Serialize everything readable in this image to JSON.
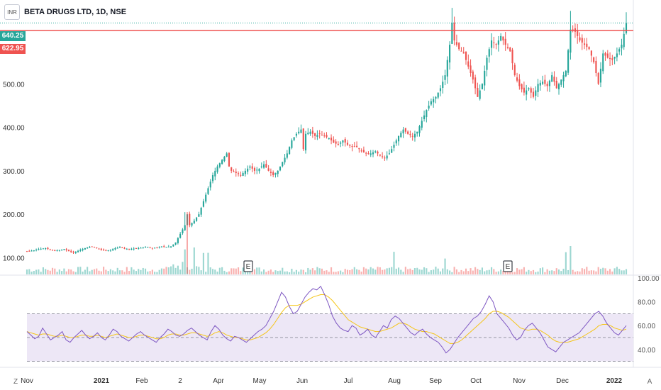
{
  "legend": {
    "symbol_badge": "INR",
    "title": "BETA DRUGS LTD, 1D, NSE"
  },
  "price_tags": [
    {
      "value": "640.25",
      "color": "#26a69a"
    },
    {
      "value": "622.95",
      "color": "#ef5350"
    }
  ],
  "colors": {
    "up": "#26a69a",
    "down": "#ef5350",
    "rsi_line": "#7e57c2",
    "rsi_ma": "#f5c518",
    "rsi_band": "#ede7f6",
    "level_line": "#ef5350",
    "last_price_line": "#26a69a"
  },
  "earnings_marker": "E",
  "bottom_buttons": {
    "left": "Z",
    "right": "A"
  },
  "chart_data": [
    {
      "type": "candlestick",
      "title": "BETA DRUGS LTD, 1D, NSE",
      "y_ticks": [
        "100.00",
        "200.00",
        "300.00",
        "400.00",
        "500.00"
      ],
      "ylim": [
        60,
        680
      ],
      "x_ticks": [
        "Nov",
        "2021",
        "Feb",
        "2",
        "Apr",
        "May",
        "Jun",
        "Jul",
        "Aug",
        "Sep",
        "Oct",
        "Nov",
        "Dec",
        "2022"
      ],
      "last_price": 640.25,
      "horizontal_level": 622.95,
      "close_path": [
        [
          0,
          115
        ],
        [
          3,
          117
        ],
        [
          5,
          120
        ],
        [
          8,
          122
        ],
        [
          10,
          118
        ],
        [
          12,
          116
        ],
        [
          14,
          118
        ],
        [
          16,
          120
        ],
        [
          18,
          115
        ],
        [
          20,
          112
        ],
        [
          22,
          116
        ],
        [
          24,
          120
        ],
        [
          26,
          124
        ],
        [
          28,
          126
        ],
        [
          30,
          122
        ],
        [
          32,
          118
        ],
        [
          34,
          116
        ],
        [
          36,
          118
        ],
        [
          38,
          122
        ],
        [
          40,
          124
        ],
        [
          42,
          121
        ],
        [
          44,
          120
        ],
        [
          46,
          121
        ],
        [
          48,
          122
        ],
        [
          50,
          124
        ],
        [
          52,
          125
        ],
        [
          54,
          122
        ],
        [
          56,
          124
        ],
        [
          58,
          126
        ],
        [
          60,
          125
        ],
        [
          62,
          126
        ],
        [
          64,
          135
        ],
        [
          66,
          155
        ],
        [
          68,
          175
        ],
        [
          69,
          200
        ],
        [
          70,
          175
        ],
        [
          72,
          185
        ],
        [
          74,
          200
        ],
        [
          76,
          230
        ],
        [
          78,
          260
        ],
        [
          80,
          290
        ],
        [
          82,
          310
        ],
        [
          84,
          325
        ],
        [
          86,
          340
        ],
        [
          87,
          310
        ],
        [
          88,
          300
        ],
        [
          90,
          295
        ],
        [
          92,
          290
        ],
        [
          94,
          300
        ],
        [
          96,
          310
        ],
        [
          98,
          300
        ],
        [
          100,
          305
        ],
        [
          102,
          315
        ],
        [
          104,
          300
        ],
        [
          106,
          290
        ],
        [
          108,
          300
        ],
        [
          110,
          320
        ],
        [
          112,
          340
        ],
        [
          114,
          370
        ],
        [
          116,
          385
        ],
        [
          118,
          395
        ],
        [
          119,
          350
        ],
        [
          120,
          385
        ],
        [
          122,
          390
        ],
        [
          124,
          380
        ],
        [
          126,
          385
        ],
        [
          128,
          380
        ],
        [
          130,
          375
        ],
        [
          132,
          365
        ],
        [
          134,
          360
        ],
        [
          136,
          370
        ],
        [
          138,
          360
        ],
        [
          140,
          355
        ],
        [
          142,
          355
        ],
        [
          144,
          345
        ],
        [
          146,
          340
        ],
        [
          148,
          340
        ],
        [
          150,
          345
        ],
        [
          152,
          335
        ],
        [
          154,
          330
        ],
        [
          156,
          340
        ],
        [
          158,
          360
        ],
        [
          160,
          380
        ],
        [
          162,
          395
        ],
        [
          164,
          385
        ],
        [
          166,
          380
        ],
        [
          168,
          390
        ],
        [
          170,
          415
        ],
        [
          172,
          440
        ],
        [
          174,
          460
        ],
        [
          176,
          470
        ],
        [
          178,
          490
        ],
        [
          180,
          520
        ],
        [
          182,
          590
        ],
        [
          183,
          640
        ],
        [
          184,
          600
        ],
        [
          186,
          580
        ],
        [
          188,
          570
        ],
        [
          190,
          540
        ],
        [
          192,
          510
        ],
        [
          194,
          470
        ],
        [
          196,
          500
        ],
        [
          198,
          560
        ],
        [
          200,
          600
        ],
        [
          202,
          590
        ],
        [
          204,
          610
        ],
        [
          206,
          590
        ],
        [
          208,
          575
        ],
        [
          210,
          520
        ],
        [
          212,
          495
        ],
        [
          214,
          480
        ],
        [
          216,
          490
        ],
        [
          218,
          470
        ],
        [
          220,
          500
        ],
        [
          222,
          505
        ],
        [
          224,
          495
        ],
        [
          226,
          520
        ],
        [
          228,
          490
        ],
        [
          230,
          510
        ],
        [
          232,
          530
        ],
        [
          234,
          625
        ],
        [
          236,
          620
        ],
        [
          238,
          600
        ],
        [
          240,
          590
        ],
        [
          242,
          580
        ],
        [
          244,
          550
        ],
        [
          246,
          500
        ],
        [
          248,
          570
        ],
        [
          250,
          560
        ],
        [
          252,
          555
        ],
        [
          254,
          570
        ],
        [
          256,
          590
        ],
        [
          258,
          640
        ]
      ]
    },
    {
      "type": "histogram",
      "title": "Volume",
      "note": "volume bars at bottom of price pane, spikes near May, Oct, Dec"
    },
    {
      "type": "line",
      "title": "RSI",
      "y_ticks": [
        "40.00",
        "60.00",
        "80.00",
        "100.00"
      ],
      "ylim": [
        25,
        100
      ],
      "bands": [
        30,
        50,
        70
      ],
      "series": [
        {
          "values": [
            55,
            52,
            49,
            51,
            58,
            53,
            48,
            50,
            52,
            55,
            48,
            46,
            50,
            53,
            56,
            52,
            49,
            51,
            54,
            50,
            48,
            52,
            57,
            55,
            51,
            49,
            47,
            50,
            53,
            55,
            52,
            50,
            48,
            46,
            50,
            53,
            57,
            55,
            52,
            51,
            53,
            56,
            58,
            55,
            52,
            50,
            48,
            55,
            60,
            57,
            52,
            49,
            47,
            51,
            50,
            48,
            46,
            49,
            52,
            55,
            57,
            60,
            66,
            72,
            80,
            88,
            84,
            76,
            70,
            72,
            78,
            84,
            88,
            91,
            90,
            93,
            86,
            78,
            68,
            62,
            58,
            56,
            55,
            60,
            58,
            52,
            54,
            57,
            52,
            50,
            55,
            60,
            58,
            65,
            68,
            66,
            62,
            58,
            54,
            52,
            55,
            57,
            53,
            50,
            48,
            46,
            42,
            37,
            40,
            45,
            50,
            54,
            58,
            62,
            66,
            68,
            72,
            78,
            85,
            80,
            70,
            66,
            62,
            58,
            52,
            48,
            50,
            56,
            60,
            62,
            58,
            54,
            48,
            42,
            40,
            38,
            42,
            46,
            48,
            50,
            52,
            54,
            58,
            62,
            66,
            70,
            72,
            68,
            62,
            58,
            54,
            52,
            56,
            60
          ]
        },
        {
          "values": [
            55,
            54,
            53,
            52,
            53,
            53,
            52,
            51,
            51,
            52,
            51,
            50,
            50,
            51,
            52,
            52,
            51,
            51,
            52,
            51,
            50,
            51,
            52,
            53,
            52,
            51,
            50,
            50,
            51,
            52,
            52,
            51,
            50,
            49,
            49,
            50,
            52,
            53,
            53,
            52,
            52,
            53,
            54,
            54,
            53,
            52,
            51,
            52,
            54,
            55,
            54,
            52,
            51,
            50,
            50,
            49,
            48,
            48,
            49,
            50,
            52,
            54,
            57,
            61,
            66,
            71,
            75,
            77,
            77,
            77,
            78,
            80,
            82,
            84,
            85,
            86,
            86,
            84,
            81,
            77,
            73,
            69,
            65,
            63,
            61,
            59,
            58,
            57,
            56,
            55,
            55,
            56,
            57,
            58,
            60,
            62,
            62,
            61,
            59,
            57,
            56,
            55,
            55,
            54,
            53,
            51,
            49,
            47,
            45,
            45,
            46,
            48,
            51,
            54,
            57,
            60,
            63,
            66,
            70,
            72,
            72,
            71,
            69,
            67,
            64,
            61,
            58,
            57,
            56,
            57,
            57,
            56,
            54,
            52,
            49,
            47,
            46,
            46,
            46,
            47,
            48,
            49,
            51,
            53,
            55,
            57,
            60,
            61,
            61,
            60,
            58,
            57,
            56,
            57
          ]
        }
      ]
    }
  ]
}
